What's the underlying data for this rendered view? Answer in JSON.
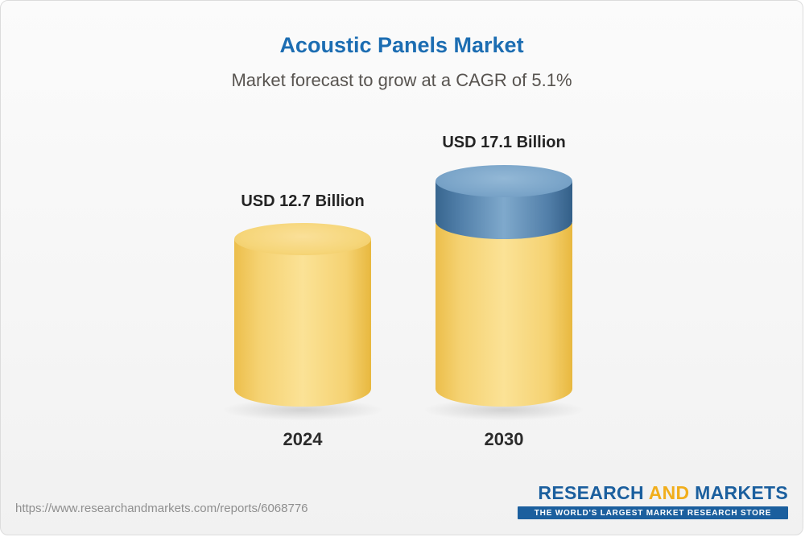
{
  "chart": {
    "title": "Acoustic Panels Market",
    "subtitle": "Market forecast to grow at a CAGR of 5.1%",
    "title_color": "#1c6db2"
  },
  "chart_data": {
    "type": "bar",
    "categories": [
      "2024",
      "2030"
    ],
    "values": [
      12.7,
      17.1
    ],
    "value_labels": [
      "USD 12.7 Billion",
      "USD 17.1 Billion"
    ],
    "unit": "USD Billion",
    "cagr": "5.1%",
    "title": "Acoustic Panels Market",
    "xlabel": "",
    "ylabel": "",
    "legend": "none",
    "grid": false,
    "note": "2030 cylinder shows 2024 base value in yellow with forecast growth segment in blue on top",
    "colors": {
      "base_segment": "#f6ce65",
      "growth_segment": "#5688b5"
    }
  },
  "footer": {
    "url": "https://www.researchandmarkets.com/reports/6068776",
    "logo": {
      "part1": "RESEARCH",
      "part2": "AND",
      "part3": "MARKETS",
      "tagline": "THE WORLD'S LARGEST MARKET RESEARCH STORE",
      "brand_blue": "#1b5f9e",
      "brand_gold": "#f1ae1c"
    }
  }
}
